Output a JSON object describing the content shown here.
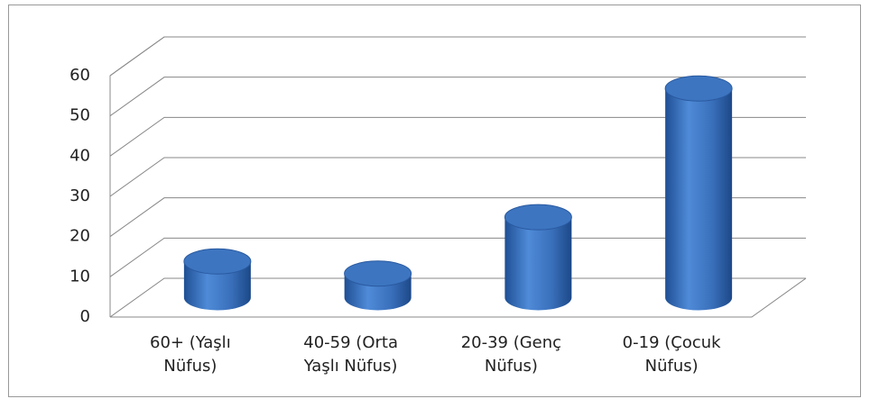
{
  "chart_data": {
    "type": "bar3d",
    "categories": [
      "60+ (Yaşlı Nüfus)",
      "40-59 (Orta Yaşlı Nüfus)",
      "20-39 (Genç Nüfus)",
      "0-19 (Çocuk Nüfus)"
    ],
    "values": [
      9,
      6,
      20,
      52
    ],
    "color": "#3d75c0",
    "ylim": [
      0,
      60
    ],
    "yticks": [
      0,
      10,
      20,
      30,
      40,
      50,
      60
    ],
    "grid": true
  }
}
